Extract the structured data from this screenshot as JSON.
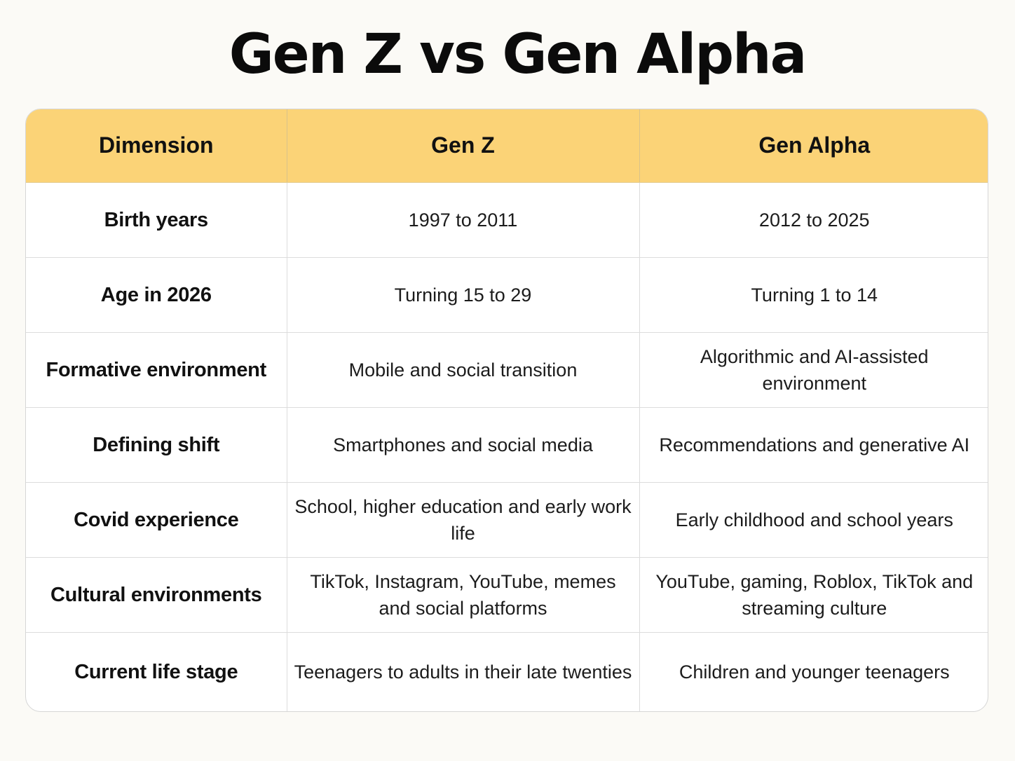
{
  "title": "Gen Z vs Gen Alpha",
  "table": {
    "headers": [
      "Dimension",
      "Gen Z",
      "Gen Alpha"
    ],
    "rows": [
      [
        "Birth years",
        "1997 to 2011",
        "2012 to 2025"
      ],
      [
        "Age in 2026",
        "Turning 15 to 29",
        "Turning 1 to 14"
      ],
      [
        "Formative environment",
        "Mobile and social transition",
        "Algorithmic and AI-assisted environment"
      ],
      [
        "Defining shift",
        "Smartphones and social media",
        "Recommendations and generative AI"
      ],
      [
        "Covid experience",
        "School, higher education and early work life",
        "Early childhood and school years"
      ],
      [
        "Cultural environments",
        "TikTok, Instagram, YouTube, memes and social platforms",
        "YouTube, gaming, Roblox, TikTok and streaming culture"
      ],
      [
        "Current life stage",
        "Teenagers to adults in their late twenties",
        "Children and younger teenagers"
      ]
    ]
  },
  "colors": {
    "header_background": "#fbd377",
    "page_background": "#fbfaf6",
    "table_background": "#ffffff"
  }
}
